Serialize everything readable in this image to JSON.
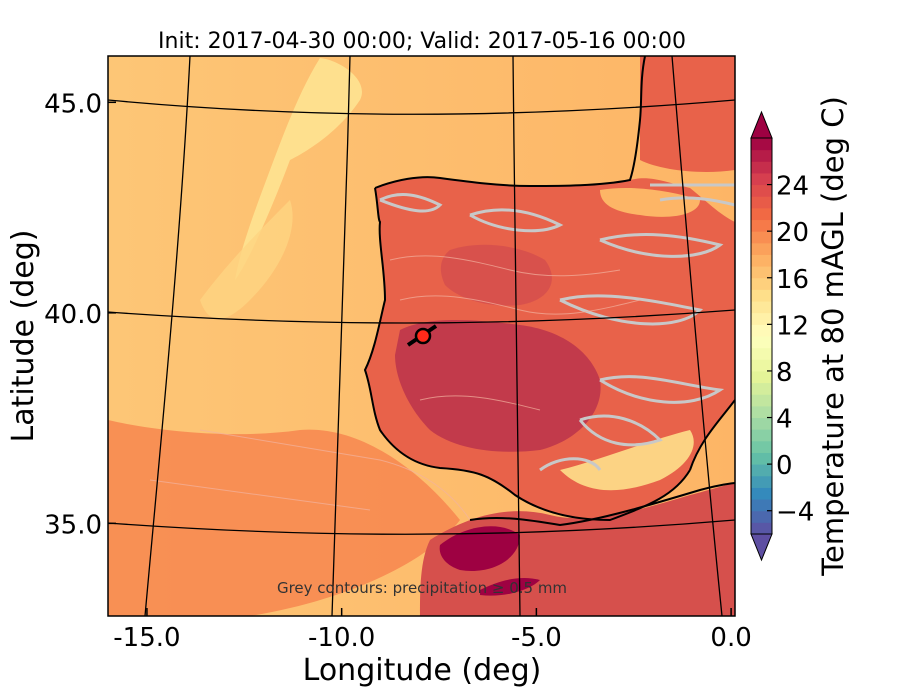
{
  "title": "Init: 2017-04-30 00:00; Valid: 2017-05-16 00:00",
  "map": {
    "xlabel": "Longitude (deg)",
    "ylabel": "Latitude (deg)",
    "x_ticks": [
      {
        "value": -15,
        "label": "-15.0"
      },
      {
        "value": -10,
        "label": "-10.0"
      },
      {
        "value": -5,
        "label": "-5.0"
      },
      {
        "value": 0,
        "label": "0.0"
      }
    ],
    "y_ticks": [
      {
        "value": 45,
        "label": "45.0"
      },
      {
        "value": 40,
        "label": "40.0"
      },
      {
        "value": 35,
        "label": "35.0"
      }
    ],
    "xlim": [
      -16,
      0.1
    ],
    "ylim": [
      32.8,
      46.1
    ],
    "annotation": "Grey contours: precipitation ≥ 0.5 mm",
    "marker": {
      "lon": -7.7,
      "lat": 39.3,
      "color": "#ff2a1a",
      "wind_barb_direction_deg": 60
    },
    "colors": {
      "ocean_warm": "#fdbe6f",
      "ocean_cool": "#fee08b",
      "land_hot": "#c23a4b",
      "land_mid": "#e8624a",
      "precip_contour": "#c8c8c8",
      "coastline": "#000000"
    }
  },
  "colorbar": {
    "label": "Temperature at 80 mAGL (deg C)",
    "range": [
      -6,
      28
    ],
    "extend": "both",
    "tick_labels": [
      {
        "value": -4,
        "label": "−4"
      },
      {
        "value": 0,
        "label": "0"
      },
      {
        "value": 4,
        "label": "4"
      },
      {
        "value": 8,
        "label": "8"
      },
      {
        "value": 12,
        "label": "12"
      },
      {
        "value": 16,
        "label": "16"
      },
      {
        "value": 20,
        "label": "20"
      },
      {
        "value": 24,
        "label": "24"
      }
    ],
    "colors": [
      "#5e4fa2",
      "#3288bd",
      "#66c2a5",
      "#abdda4",
      "#e6f598",
      "#ffffbf",
      "#fee08b",
      "#fdae61",
      "#f46d43",
      "#d53e4f",
      "#9e0142"
    ]
  }
}
